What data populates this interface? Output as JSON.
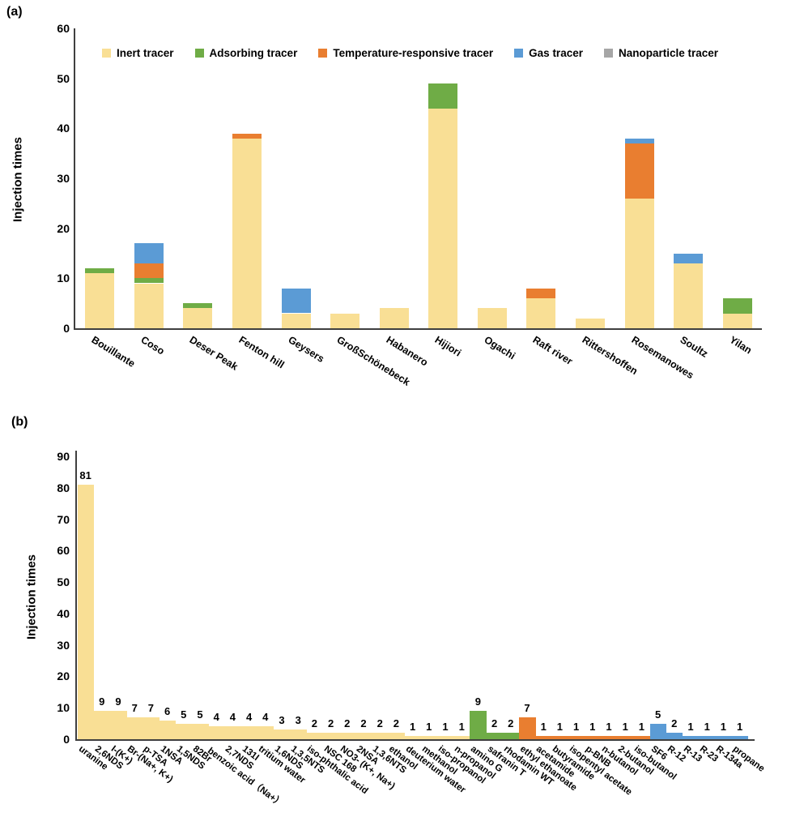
{
  "colors": {
    "inert": "#F9DF95",
    "adsorbing": "#6FAC46",
    "temperature": "#E97E30",
    "gas": "#5B9BD5",
    "nanoparticle": "#A6A6A6",
    "axis": "#3F3F3F",
    "text": "#000000"
  },
  "chart_data": [
    {
      "id": "a",
      "type": "bar",
      "stacked": true,
      "panel_label": "(a)",
      "title": "",
      "ylabel": "Injection times",
      "xlabel": "",
      "ylim": [
        0,
        60
      ],
      "yticks": [
        0,
        10,
        20,
        30,
        40,
        50,
        60
      ],
      "grid": false,
      "legend_position": "top-inside",
      "legend": [
        {
          "label": "Inert tracer",
          "color_key": "inert"
        },
        {
          "label": "Adsorbing tracer",
          "color_key": "adsorbing"
        },
        {
          "label": "Temperature-responsive tracer",
          "color_key": "temperature"
        },
        {
          "label": "Gas tracer",
          "color_key": "gas"
        },
        {
          "label": "Nanoparticle tracer",
          "color_key": "nanoparticle"
        }
      ],
      "categories": [
        "Bouillante",
        "Coso",
        "Deser Peak",
        "Fenton hill",
        "Geysers",
        "GroßSchönebeck",
        "Habanero",
        "Hijiori",
        "Ogachi",
        "Raft river",
        "Rittershoffen",
        "Rosemanowes",
        "Soultz",
        "Yilan"
      ],
      "series": [
        {
          "name": "Inert tracer",
          "color_key": "inert",
          "values": [
            11,
            9,
            4,
            38,
            3,
            3,
            4,
            44,
            4,
            6,
            2,
            26,
            13,
            3
          ]
        },
        {
          "name": "Adsorbing tracer",
          "color_key": "adsorbing",
          "values": [
            1,
            1,
            1,
            0,
            0,
            0,
            0,
            5,
            0,
            0,
            0,
            0,
            0,
            3
          ]
        },
        {
          "name": "Temperature-responsive tracer",
          "color_key": "temperature",
          "values": [
            0,
            3,
            0,
            1,
            0,
            0,
            0,
            0,
            0,
            2,
            0,
            11,
            0,
            0
          ]
        },
        {
          "name": "Gas tracer",
          "color_key": "gas",
          "values": [
            0,
            4,
            0,
            0,
            5,
            0,
            0,
            0,
            0,
            0,
            0,
            1,
            2,
            0
          ]
        },
        {
          "name": "Nanoparticle tracer",
          "color_key": "nanoparticle",
          "values": [
            0,
            0,
            0,
            0,
            0,
            0,
            0,
            0,
            0,
            0,
            0,
            0,
            0,
            0
          ]
        }
      ],
      "totals": [
        12,
        17,
        5,
        39,
        8,
        3,
        4,
        49,
        4,
        8,
        2,
        38,
        15,
        6
      ]
    },
    {
      "id": "b",
      "type": "bar",
      "stacked": false,
      "panel_label": "(b)",
      "title": "",
      "ylabel": "Injection times",
      "xlabel": "",
      "ylim": [
        0,
        90
      ],
      "yticks": [
        0,
        10,
        20,
        30,
        40,
        50,
        60,
        70,
        80,
        90
      ],
      "grid": false,
      "show_value_labels": true,
      "bars": [
        {
          "label": "uranine",
          "value": 81,
          "group": "inert"
        },
        {
          "label": "2,6NDS",
          "value": 9,
          "group": "inert"
        },
        {
          "label": "I-(K+)",
          "value": 9,
          "group": "inert"
        },
        {
          "label": "Br-(Na+, K+)",
          "value": 7,
          "group": "inert"
        },
        {
          "label": "p-TSA",
          "value": 7,
          "group": "inert"
        },
        {
          "label": "1NSA",
          "value": 6,
          "group": "inert"
        },
        {
          "label": "1,5NDS",
          "value": 5,
          "group": "inert"
        },
        {
          "label": "82Br",
          "value": 5,
          "group": "inert"
        },
        {
          "label": "benzoic acid（Na+）",
          "value": 4,
          "group": "inert"
        },
        {
          "label": "2,7NDS",
          "value": 4,
          "group": "inert"
        },
        {
          "label": "131I",
          "value": 4,
          "group": "inert"
        },
        {
          "label": "tritium water",
          "value": 4,
          "group": "inert"
        },
        {
          "label": "1,6NDS",
          "value": 3,
          "group": "inert"
        },
        {
          "label": "1,3,5NTS",
          "value": 3,
          "group": "inert"
        },
        {
          "label": "iso-phthalic acid",
          "value": 2,
          "group": "inert"
        },
        {
          "label": "NSC 168",
          "value": 2,
          "group": "inert"
        },
        {
          "label": "NO3- (K+, Na+)",
          "value": 2,
          "group": "inert"
        },
        {
          "label": "2NSA",
          "value": 2,
          "group": "inert"
        },
        {
          "label": "1,3,6NTS",
          "value": 2,
          "group": "inert"
        },
        {
          "label": "ethanol",
          "value": 2,
          "group": "inert"
        },
        {
          "label": "deuterium water",
          "value": 1,
          "group": "inert"
        },
        {
          "label": "methanol",
          "value": 1,
          "group": "inert"
        },
        {
          "label": "iso-propanol",
          "value": 1,
          "group": "inert"
        },
        {
          "label": "n-propanol",
          "value": 1,
          "group": "inert"
        },
        {
          "label": "amino G",
          "value": 9,
          "group": "adsorbing"
        },
        {
          "label": "safranin T",
          "value": 2,
          "group": "adsorbing"
        },
        {
          "label": "rhodamin WT",
          "value": 2,
          "group": "adsorbing"
        },
        {
          "label": "ethyl ethanoate",
          "value": 7,
          "group": "temperature"
        },
        {
          "label": "acetamide",
          "value": 1,
          "group": "temperature"
        },
        {
          "label": "butyramide",
          "value": 1,
          "group": "temperature"
        },
        {
          "label": "isopentyl acetate",
          "value": 1,
          "group": "temperature"
        },
        {
          "label": "p-BNB",
          "value": 1,
          "group": "temperature"
        },
        {
          "label": "n-butanol",
          "value": 1,
          "group": "temperature"
        },
        {
          "label": "2-butanol",
          "value": 1,
          "group": "temperature"
        },
        {
          "label": "iso-butanol",
          "value": 1,
          "group": "temperature"
        },
        {
          "label": "SF6",
          "value": 5,
          "group": "gas"
        },
        {
          "label": "R-12",
          "value": 2,
          "group": "gas"
        },
        {
          "label": "R-13",
          "value": 1,
          "group": "gas"
        },
        {
          "label": "R-23",
          "value": 1,
          "group": "gas"
        },
        {
          "label": "R-134a",
          "value": 1,
          "group": "gas"
        },
        {
          "label": "propane",
          "value": 1,
          "group": "gas"
        }
      ]
    }
  ]
}
